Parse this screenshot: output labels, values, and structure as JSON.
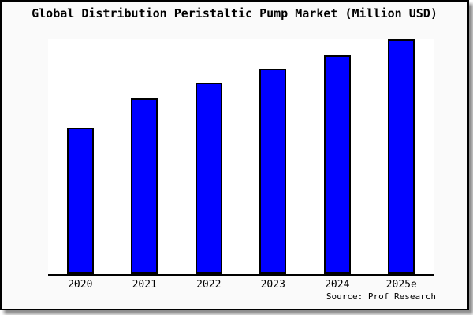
{
  "chart_data": {
    "type": "bar",
    "title": "Global Distribution Peristaltic Pump Market (Million USD)",
    "xlabel": "",
    "ylabel": "",
    "categories": [
      "2020",
      "2021",
      "2022",
      "2023",
      "2024",
      "2025e"
    ],
    "values": [
      62.4,
      74.8,
      81.5,
      87.6,
      93.3,
      100
    ],
    "value_scale_note": "no y-axis tick labels visible; values are relative bar heights with 2025e = 100",
    "ylim": [
      0,
      100
    ],
    "grid": false,
    "legend_position": "none",
    "bar_color": "#0000FF",
    "bar_edge_color": "#000000",
    "plot_bg": "#FFFFFF",
    "figure_bg": "#FAFAFA",
    "frame_color": "#000000"
  },
  "source": {
    "text": "Source: Prof Research"
  }
}
